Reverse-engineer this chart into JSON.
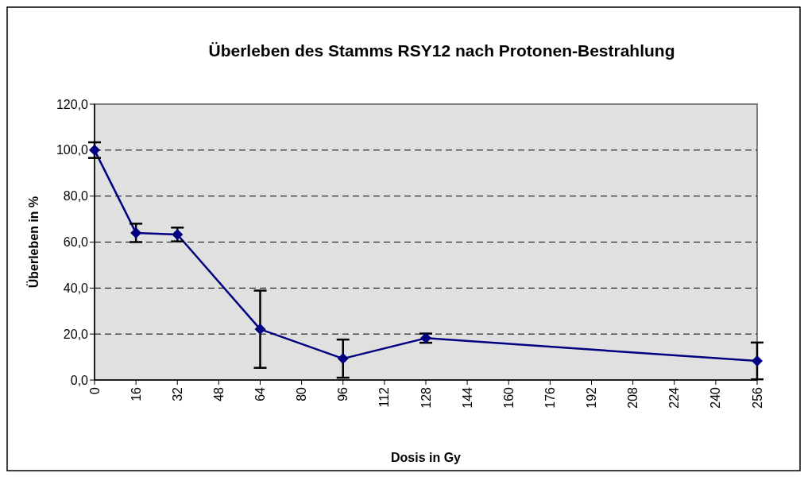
{
  "chart_data": {
    "type": "line",
    "title": "Überleben des Stamms RSY12 nach Protonen-Bestrahlung",
    "xlabel": "Dosis in Gy",
    "ylabel": "Überleben in %",
    "x": [
      0,
      16,
      32,
      64,
      96,
      128,
      256
    ],
    "series": [
      {
        "color": "#000080",
        "values": [
          100,
          64.0,
          63.3,
          22.1,
          9.3,
          18.2,
          8.3
        ],
        "errors": [
          3.4,
          4,
          3,
          16.8,
          8.3,
          2,
          8
        ]
      }
    ],
    "xlim": [
      0,
      256
    ],
    "xticks": [
      0,
      16,
      32,
      48,
      64,
      80,
      96,
      112,
      128,
      144,
      160,
      176,
      192,
      208,
      224,
      240,
      256
    ],
    "ylim": [
      0,
      120
    ],
    "yticks": [
      {
        "value": 0,
        "label": "0,0"
      },
      {
        "value": 20,
        "label": "20,0"
      },
      {
        "value": 40,
        "label": "40,0"
      },
      {
        "value": 60,
        "label": "60,0"
      },
      {
        "value": 80,
        "label": "80,0"
      },
      {
        "value": 100,
        "label": "100,0"
      },
      {
        "value": 120,
        "label": "120,0"
      }
    ],
    "grid": "y",
    "marker": "diamond",
    "line_style": "solid"
  }
}
